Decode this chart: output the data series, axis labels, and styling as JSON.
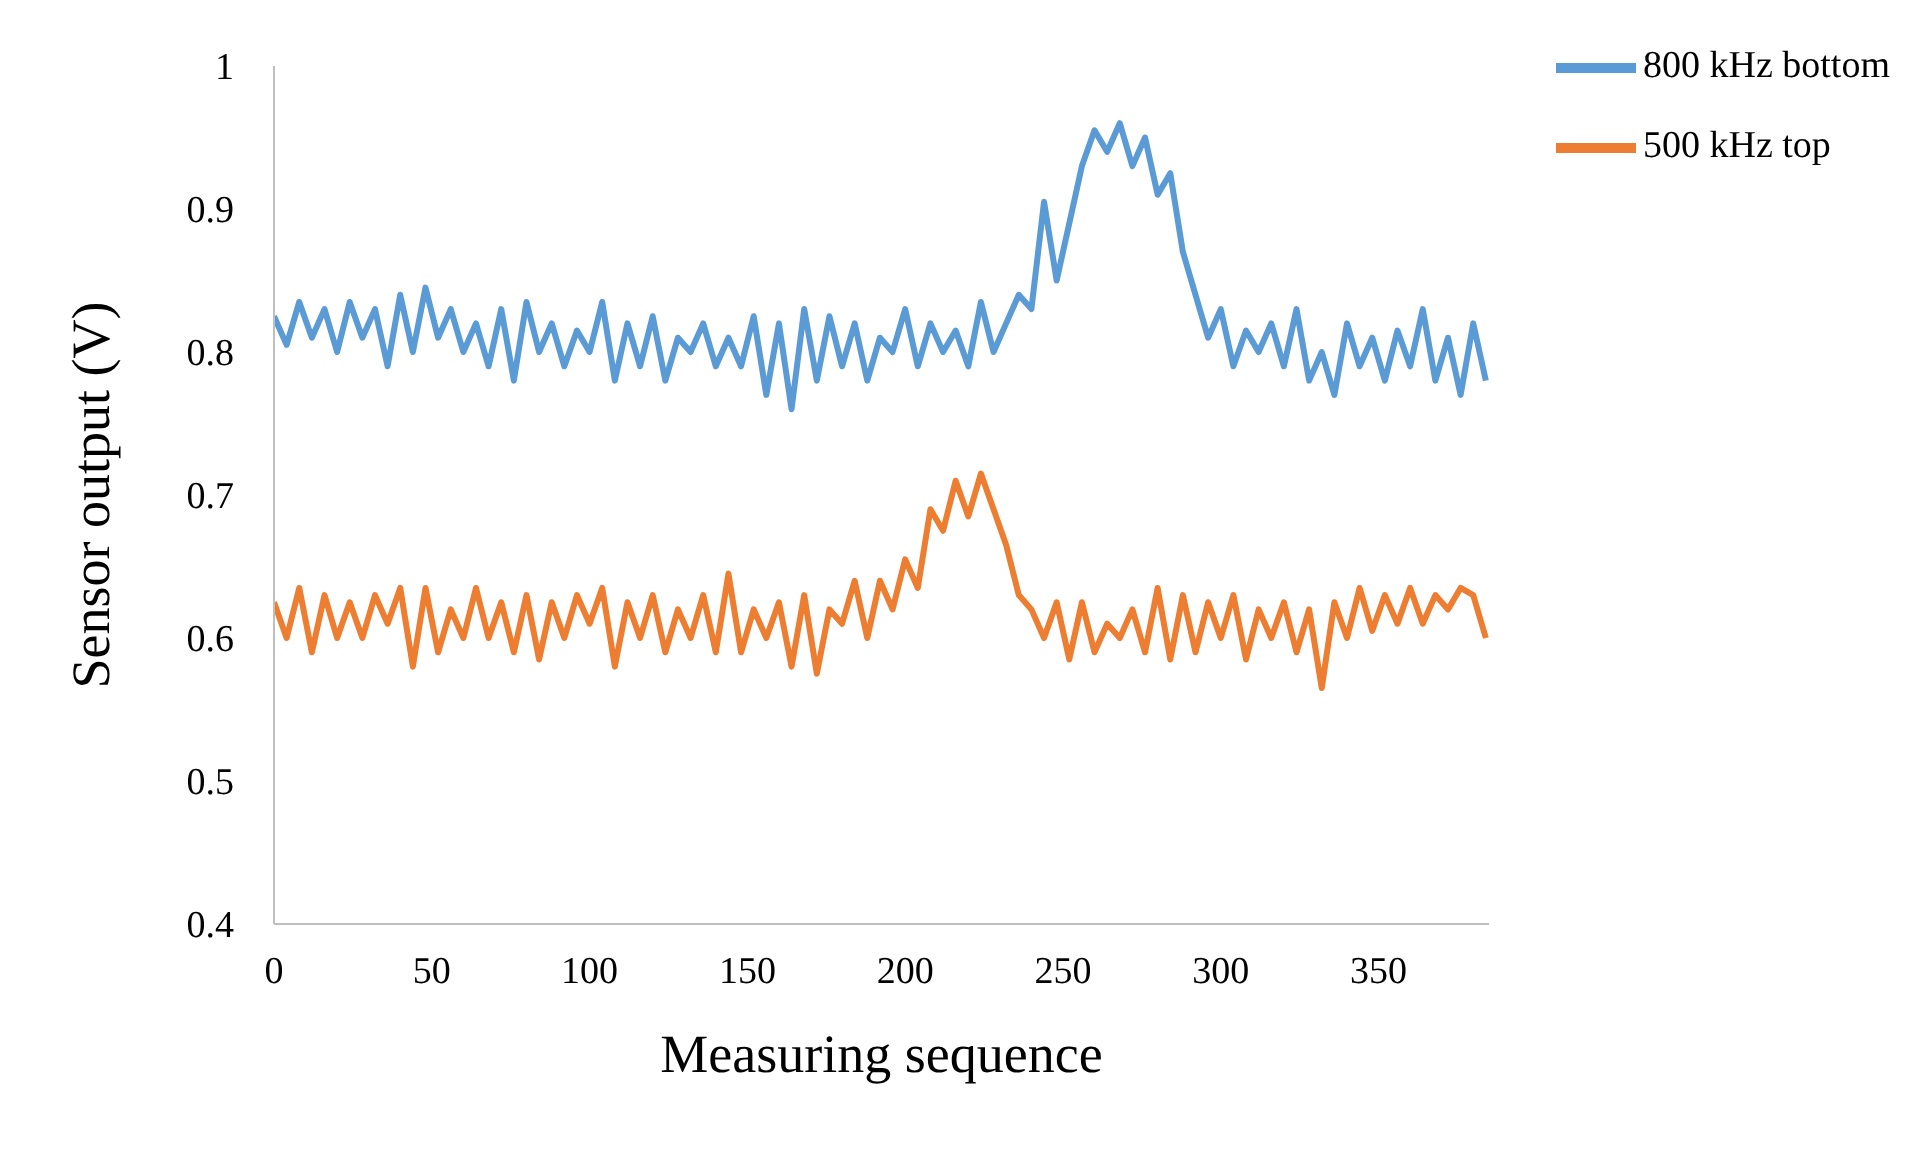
{
  "chart_data": {
    "type": "line",
    "xlabel": "Measuring sequence",
    "ylabel": "Sensor output (V)",
    "legend": "top right",
    "x": [
      0,
      4,
      8,
      12,
      16,
      20,
      24,
      28,
      32,
      36,
      40,
      44,
      48,
      52,
      56,
      60,
      64,
      68,
      72,
      76,
      80,
      84,
      88,
      92,
      96,
      100,
      104,
      108,
      112,
      116,
      120,
      124,
      128,
      132,
      136,
      140,
      144,
      148,
      152,
      156,
      160,
      164,
      168,
      172,
      176,
      180,
      184,
      188,
      192,
      196,
      200,
      204,
      208,
      212,
      216,
      220,
      224,
      228,
      232,
      236,
      240,
      244,
      248,
      252,
      256,
      260,
      264,
      268,
      272,
      276,
      280,
      284,
      288,
      292,
      296,
      300,
      304,
      308,
      312,
      316,
      320,
      324,
      328,
      332,
      336,
      340,
      344,
      348,
      352,
      356,
      360,
      364,
      368,
      372,
      376,
      380,
      384
    ],
    "xlim": [
      0,
      385
    ],
    "xticks": [
      0,
      50,
      100,
      150,
      200,
      250,
      300,
      350
    ],
    "ylim": [
      0.4,
      1
    ],
    "yticks": [
      0.4,
      0.5,
      0.6,
      0.7,
      0.8,
      0.9,
      1
    ],
    "series": [
      {
        "name": "800 kHz bottom",
        "color": "#5b9bd5",
        "values": [
          0.825,
          0.805,
          0.835,
          0.81,
          0.83,
          0.8,
          0.835,
          0.81,
          0.83,
          0.79,
          0.84,
          0.8,
          0.845,
          0.81,
          0.83,
          0.8,
          0.82,
          0.79,
          0.83,
          0.78,
          0.835,
          0.8,
          0.82,
          0.79,
          0.815,
          0.8,
          0.835,
          0.78,
          0.82,
          0.79,
          0.825,
          0.78,
          0.81,
          0.8,
          0.82,
          0.79,
          0.81,
          0.79,
          0.825,
          0.77,
          0.82,
          0.76,
          0.83,
          0.78,
          0.825,
          0.79,
          0.82,
          0.78,
          0.81,
          0.8,
          0.83,
          0.79,
          0.82,
          0.8,
          0.815,
          0.79,
          0.835,
          0.8,
          0.82,
          0.84,
          0.83,
          0.905,
          0.85,
          0.89,
          0.93,
          0.955,
          0.94,
          0.96,
          0.93,
          0.95,
          0.91,
          0.925,
          0.87,
          0.84,
          0.81,
          0.83,
          0.79,
          0.815,
          0.8,
          0.82,
          0.79,
          0.83,
          0.78,
          0.8,
          0.77,
          0.82,
          0.79,
          0.81,
          0.78,
          0.815,
          0.79,
          0.83,
          0.78,
          0.81,
          0.77,
          0.82,
          0.78
        ]
      },
      {
        "name": "500 kHz top",
        "color": "#ed7d31",
        "values": [
          0.625,
          0.6,
          0.635,
          0.59,
          0.63,
          0.6,
          0.625,
          0.6,
          0.63,
          0.61,
          0.635,
          0.58,
          0.635,
          0.59,
          0.62,
          0.6,
          0.635,
          0.6,
          0.625,
          0.59,
          0.63,
          0.585,
          0.625,
          0.6,
          0.63,
          0.61,
          0.635,
          0.58,
          0.625,
          0.6,
          0.63,
          0.59,
          0.62,
          0.6,
          0.63,
          0.59,
          0.645,
          0.59,
          0.62,
          0.6,
          0.625,
          0.58,
          0.63,
          0.575,
          0.62,
          0.61,
          0.64,
          0.6,
          0.64,
          0.62,
          0.655,
          0.635,
          0.69,
          0.675,
          0.71,
          0.685,
          0.715,
          0.69,
          0.665,
          0.63,
          0.62,
          0.6,
          0.625,
          0.585,
          0.625,
          0.59,
          0.61,
          0.6,
          0.62,
          0.59,
          0.635,
          0.585,
          0.63,
          0.59,
          0.625,
          0.6,
          0.63,
          0.585,
          0.62,
          0.6,
          0.625,
          0.59,
          0.62,
          0.565,
          0.625,
          0.6,
          0.635,
          0.605,
          0.63,
          0.61,
          0.635,
          0.61,
          0.63,
          0.62,
          0.635,
          0.63,
          0.6
        ]
      }
    ]
  }
}
